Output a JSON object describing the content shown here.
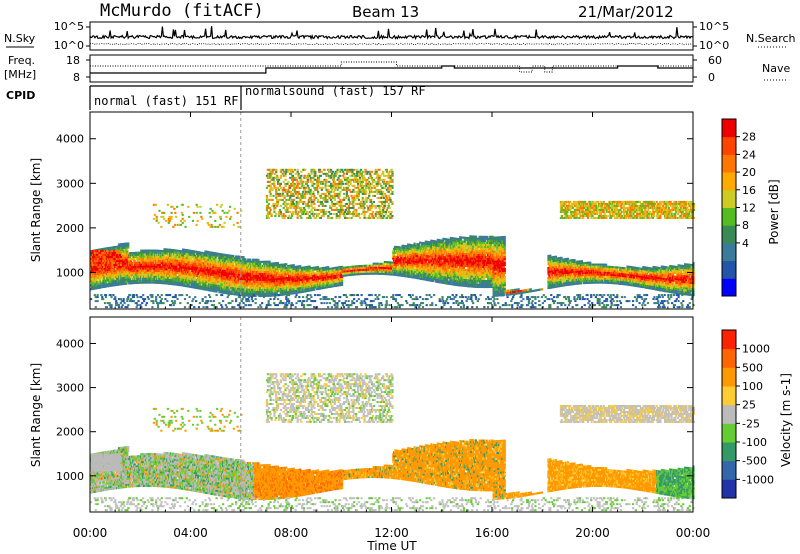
{
  "header": {
    "station": "McMurdo (fitACF)",
    "beam": "Beam 13",
    "date": "21/Mar/2012"
  },
  "top_panels": {
    "nsky_label": "N.Sky",
    "nsky_ticks": [
      "10^5",
      "10^0"
    ],
    "nsearch_label": "N.Search",
    "nsearch_ticks": [
      "10^5",
      "10^0"
    ],
    "freq_label_1": "Freq.",
    "freq_label_2": "[MHz]",
    "freq_ticks": [
      "18",
      "8"
    ],
    "nave_label": "Nave",
    "nave_ticks": [
      "60",
      "0"
    ],
    "cpid_label": "CPID",
    "cpid_segments": [
      {
        "label": "normal (fast) 151 RF",
        "start_hour": 0,
        "end_hour": 6
      },
      {
        "label": "normalsound (fast) 157 RF",
        "start_hour": 6,
        "end_hour": 24
      }
    ]
  },
  "chart_data": [
    {
      "type": "heatmap",
      "name": "power",
      "ylabel": "Slant Range [km]",
      "xlabel": "",
      "ylim": [
        180,
        4600
      ],
      "y_ticks": [
        "4000",
        "3000",
        "2000",
        "1000"
      ],
      "colorbar_label": "Power [dB]",
      "colorbar_ticks": [
        "28",
        "24",
        "20",
        "16",
        "12",
        "8",
        "4"
      ],
      "colorbar_colors": [
        "#0000ff",
        "#2255aa",
        "#3a7a9a",
        "#3a8a55",
        "#55bb22",
        "#cccc22",
        "#ffaa00",
        "#ff7700",
        "#ff4400",
        "#ee0000"
      ]
    },
    {
      "type": "heatmap",
      "name": "velocity",
      "ylabel": "Slant Range [km]",
      "xlabel": "Time UT",
      "ylim": [
        180,
        4600
      ],
      "y_ticks": [
        "4000",
        "3000",
        "2000",
        "1000"
      ],
      "x_ticks": [
        "00:00",
        "04:00",
        "08:00",
        "12:00",
        "16:00",
        "20:00",
        "00:00"
      ],
      "colorbar_label": "Velocity [m s-1]",
      "colorbar_ticks": [
        "1000",
        "500",
        "100",
        "25",
        "-25",
        "-100",
        "-500",
        "-1000"
      ],
      "colorbar_colors": [
        "#2233aa",
        "#3366aa",
        "#339966",
        "#66cc33",
        "#bbbbbb",
        "#ffcc33",
        "#ff9900",
        "#ff6600",
        "#ff2200"
      ]
    }
  ],
  "colors": {
    "ground_scatter": "#c0c0c0"
  }
}
